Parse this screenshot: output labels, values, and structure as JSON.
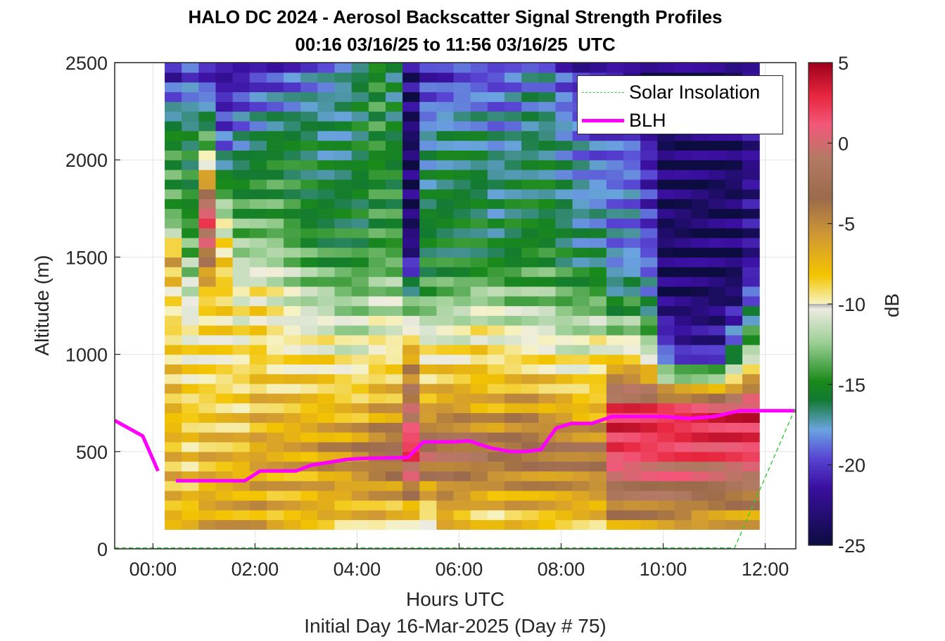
{
  "title_line1": "HALO DC 2024 - Aerosol Backscatter Signal Strength Profiles",
  "title_line2": "00:16 03/16/25 to 11:56 03/16/25  UTC",
  "chart_data": {
    "type": "heatmap",
    "xlabel": "Hours UTC",
    "xnote": "Initial Day 16-Mar-2025 (Day # 75)",
    "ylabel": "Altitude (m)",
    "xlim": [
      -0.75,
      12.6
    ],
    "ylim": [
      0,
      2500
    ],
    "xticks": [
      0,
      2,
      4,
      6,
      8,
      10,
      12
    ],
    "xticklabels": [
      "00:00",
      "02:00",
      "04:00",
      "06:00",
      "08:00",
      "10:00",
      "12:00"
    ],
    "yticks": [
      0,
      500,
      1000,
      1500,
      2000,
      2500
    ],
    "yticklabels": [
      "0",
      "500",
      "1000",
      "1500",
      "2000",
      "2500"
    ],
    "grid": true,
    "colorbar": {
      "label": "dB",
      "range": [
        -25,
        5
      ],
      "ticks": [
        5,
        0,
        -5,
        -10,
        -15,
        -20,
        -25
      ],
      "ticklabels": [
        "5",
        "0",
        "-5",
        "-10",
        "-15",
        "-20",
        "-25"
      ]
    },
    "legend": {
      "placement": "top-right",
      "entries": [
        "Solar Insolation",
        "BLH"
      ]
    },
    "heatmap_extent": {
      "x_start": 0.23,
      "x_step": 0.333,
      "columns": 35,
      "altitude_bottom": 100,
      "altitude_top": 2500
    },
    "heatmap_profiles": [
      {
        "altitude": [
          100,
          500,
          700,
          1000,
          1300,
          1500,
          1700,
          2100,
          2500
        ],
        "dB": [
          -7,
          -7,
          -7,
          -8,
          -9,
          -6,
          -14,
          -15,
          -23
        ]
      },
      {
        "altitude": [
          100,
          500,
          700,
          1000,
          1300,
          1500,
          1700,
          2100,
          2500
        ],
        "dB": [
          -7,
          -8,
          -8,
          -9,
          -11,
          -13,
          -15,
          -16,
          -21
        ]
      },
      {
        "altitude": [
          100,
          500,
          700,
          1000,
          1300,
          1500,
          1700,
          2100,
          2500
        ],
        "dB": [
          -6,
          -7,
          -8,
          -9,
          -8,
          -3,
          2,
          -14,
          -23
        ]
      },
      {
        "altitude": [
          100,
          500,
          700,
          1000,
          1300,
          1500,
          1700,
          2100,
          2500
        ],
        "dB": [
          -6,
          -7,
          -8,
          -9,
          -8,
          -8,
          -11,
          -20,
          -23
        ]
      },
      {
        "altitude": [
          100,
          500,
          700,
          1000,
          1300,
          1500,
          1700,
          2100,
          2500
        ],
        "dB": [
          -6,
          -7,
          -8,
          -9,
          -10,
          -12,
          -14,
          -18,
          -23
        ]
      },
      {
        "altitude": [
          100,
          500,
          700,
          1000,
          1300,
          1500,
          1700,
          2100,
          2500
        ],
        "dB": [
          -6,
          -6,
          -7,
          -8,
          -9,
          -12,
          -14,
          -17,
          -22
        ]
      },
      {
        "altitude": [
          100,
          500,
          700,
          1000,
          1300,
          1500,
          1700,
          2100,
          2500
        ],
        "dB": [
          -7,
          -6,
          -7,
          -9,
          -10,
          -12,
          -14,
          -16,
          -22
        ]
      },
      {
        "altitude": [
          100,
          500,
          700,
          1000,
          1300,
          1500,
          1700,
          2100,
          2500
        ],
        "dB": [
          -7,
          -6,
          -7,
          -9,
          -11,
          -13,
          -15,
          -16,
          -21
        ]
      },
      {
        "altitude": [
          100,
          500,
          700,
          1000,
          1300,
          1500,
          1700,
          2100,
          2500
        ],
        "dB": [
          -7,
          -6,
          -7,
          -9,
          -12,
          -14,
          -16,
          -16,
          -20
        ]
      },
      {
        "altitude": [
          100,
          500,
          700,
          1000,
          1300,
          1500,
          1700,
          2100,
          2500
        ],
        "dB": [
          -7,
          -5,
          -7,
          -9,
          -12,
          -15,
          -16,
          -17,
          -19
        ]
      },
      {
        "altitude": [
          100,
          500,
          700,
          1000,
          1300,
          1500,
          1700,
          2100,
          2500
        ],
        "dB": [
          -8,
          -5,
          -7,
          -10,
          -13,
          -15,
          -16,
          -17,
          -18
        ]
      },
      {
        "altitude": [
          100,
          500,
          700,
          1000,
          1300,
          1500,
          1700,
          2100,
          2500
        ],
        "dB": [
          -8,
          -4,
          -7,
          -10,
          -13,
          -15,
          -16,
          -16,
          -17
        ]
      },
      {
        "altitude": [
          100,
          500,
          700,
          1000,
          1300,
          1500,
          1700,
          2100,
          2500
        ],
        "dB": [
          -8,
          -3,
          -6,
          -9,
          -12,
          -14,
          -15,
          -15,
          -15
        ]
      },
      {
        "altitude": [
          100,
          500,
          700,
          1000,
          1300,
          1500,
          1700,
          2100,
          2500
        ],
        "dB": [
          -9,
          -2,
          -6,
          -9,
          -12,
          -14,
          -15,
          -16,
          -17
        ]
      },
      {
        "altitude": [
          100,
          500,
          700,
          1000,
          1300,
          1500,
          1700,
          2100,
          2500
        ],
        "dB": [
          -10,
          3,
          -1,
          -6,
          -15,
          -23,
          -24,
          -24,
          -23
        ]
      },
      {
        "altitude": [
          100,
          500,
          700,
          1000,
          1300,
          1500,
          1700,
          2100,
          2500
        ],
        "dB": [
          -11,
          -1,
          -6,
          -9,
          -14,
          -16,
          -16,
          -18,
          -22
        ]
      },
      {
        "altitude": [
          100,
          500,
          700,
          1000,
          1300,
          1500,
          1700,
          2100,
          2500
        ],
        "dB": [
          -7,
          -2,
          -5,
          -9,
          -13,
          -16,
          -16,
          -17,
          -22
        ]
      },
      {
        "altitude": [
          100,
          500,
          700,
          1000,
          1300,
          1500,
          1700,
          2100,
          2500
        ],
        "dB": [
          -8,
          -2,
          -5,
          -9,
          -13,
          -16,
          -16,
          -17,
          -21
        ]
      },
      {
        "altitude": [
          100,
          500,
          700,
          1000,
          1300,
          1500,
          1700,
          2100,
          2500
        ],
        "dB": [
          -9,
          -2,
          -6,
          -8,
          -12,
          -16,
          -16,
          -17,
          -21
        ]
      },
      {
        "altitude": [
          100,
          500,
          700,
          1000,
          1300,
          1500,
          1700,
          2100,
          2500
        ],
        "dB": [
          -9,
          -3,
          -6,
          -9,
          -12,
          -16,
          -17,
          -18,
          -21
        ]
      },
      {
        "altitude": [
          100,
          500,
          700,
          1000,
          1300,
          1500,
          1700,
          2100,
          2500
        ],
        "dB": [
          -8,
          -3,
          -5,
          -9,
          -13,
          -16,
          -16,
          -18,
          -20
        ]
      },
      {
        "altitude": [
          100,
          500,
          700,
          1000,
          1300,
          1500,
          1700,
          2100,
          2500
        ],
        "dB": [
          -8,
          -3,
          -5,
          -9,
          -13,
          -15,
          -16,
          -17,
          -19
        ]
      },
      {
        "altitude": [
          100,
          500,
          700,
          1000,
          1300,
          1500,
          1700,
          2100,
          2500
        ],
        "dB": [
          -8,
          -3,
          -6,
          -9,
          -13,
          -15,
          -16,
          -17,
          -19
        ]
      },
      {
        "altitude": [
          100,
          500,
          700,
          1000,
          1300,
          1500,
          1700,
          2100,
          2500
        ],
        "dB": [
          -8,
          -3,
          -6,
          -10,
          -14,
          -16,
          -17,
          -18,
          -21
        ]
      },
      {
        "altitude": [
          100,
          500,
          700,
          1000,
          1300,
          1500,
          1700,
          2100,
          2500
        ],
        "dB": [
          -8,
          -3,
          -7,
          -10,
          -14,
          -17,
          -18,
          -19,
          -22
        ]
      },
      {
        "altitude": [
          100,
          500,
          700,
          1000,
          1300,
          1500,
          1700,
          2100,
          2500
        ],
        "dB": [
          -8,
          -3,
          -7,
          -9,
          -14,
          -17,
          -18,
          -20,
          -22
        ]
      },
      {
        "altitude": [
          100,
          500,
          700,
          1000,
          1300,
          1500,
          1700,
          2100,
          2500
        ],
        "dB": [
          -6,
          2,
          3,
          -9,
          -17,
          -19,
          -19,
          -20,
          -22
        ]
      },
      {
        "altitude": [
          100,
          500,
          700,
          1000,
          1300,
          1500,
          1700,
          2100,
          2500
        ],
        "dB": [
          -6,
          2,
          3,
          -9,
          -16,
          -19,
          -19,
          -20,
          -23
        ]
      },
      {
        "altitude": [
          100,
          500,
          700,
          1000,
          1300,
          1500,
          1700,
          2100,
          2500
        ],
        "dB": [
          -6,
          2,
          3,
          -11,
          -18,
          -20,
          -21,
          -22,
          -24
        ]
      },
      {
        "altitude": [
          100,
          500,
          700,
          1000,
          1300,
          1500,
          1700,
          2100,
          2500
        ],
        "dB": [
          -6,
          2,
          3,
          -20,
          -24,
          -24,
          -24,
          -24,
          -24
        ]
      },
      {
        "altitude": [
          100,
          500,
          700,
          1000,
          1300,
          1500,
          1700,
          2100,
          2500
        ],
        "dB": [
          -6,
          2,
          3,
          -22,
          -24,
          -24,
          -24,
          -24,
          -24
        ]
      },
      {
        "altitude": [
          100,
          500,
          700,
          1000,
          1300,
          1500,
          1700,
          2100,
          2500
        ],
        "dB": [
          -7,
          2,
          3,
          -22,
          -24,
          -24,
          -24,
          -24,
          -24
        ]
      },
      {
        "altitude": [
          100,
          500,
          700,
          1000,
          1300,
          1500,
          1700,
          2100,
          2500
        ],
        "dB": [
          -7,
          2,
          3,
          -22,
          -24,
          -24,
          -24,
          -24,
          -24
        ]
      },
      {
        "altitude": [
          100,
          500,
          700,
          1000,
          1300,
          1500,
          1700,
          2100,
          2500
        ],
        "dB": [
          -7,
          2,
          3,
          -17,
          -24,
          -24,
          -24,
          -24,
          -24
        ]
      },
      {
        "altitude": [
          100,
          500,
          700,
          1000,
          1300,
          1500,
          1700,
          2100,
          2500
        ],
        "dB": [
          -7,
          2,
          3,
          -12,
          -20,
          -23,
          -23,
          -23,
          -23
        ]
      }
    ],
    "series": [
      {
        "name": "BLH",
        "color": "#ff00ff",
        "segments": [
          {
            "x": [
              -0.75,
              -0.2,
              0.1
            ],
            "y": [
              660,
              580,
              400
            ]
          },
          {
            "x": [
              0.45,
              1.8,
              2.1,
              2.8,
              3.1,
              3.8,
              4.1,
              5.0,
              5.3,
              5.9,
              6.2,
              6.6,
              7.0,
              7.3,
              7.6,
              7.9,
              8.2,
              8.6,
              9.0,
              10.0,
              10.5,
              11.0,
              11.5,
              12.6
            ],
            "y": [
              350,
              350,
              400,
              400,
              430,
              460,
              465,
              470,
              550,
              550,
              555,
              520,
              500,
              500,
              510,
              620,
              645,
              645,
              680,
              680,
              670,
              680,
              710,
              710
            ]
          }
        ]
      },
      {
        "name": "Solar Insolation",
        "color": "#33cc33",
        "dashed": true,
        "segments": [
          {
            "x": [
              -0.75,
              11.4,
              12.6
            ],
            "y": [
              5,
              5,
              730
            ]
          }
        ]
      }
    ]
  }
}
